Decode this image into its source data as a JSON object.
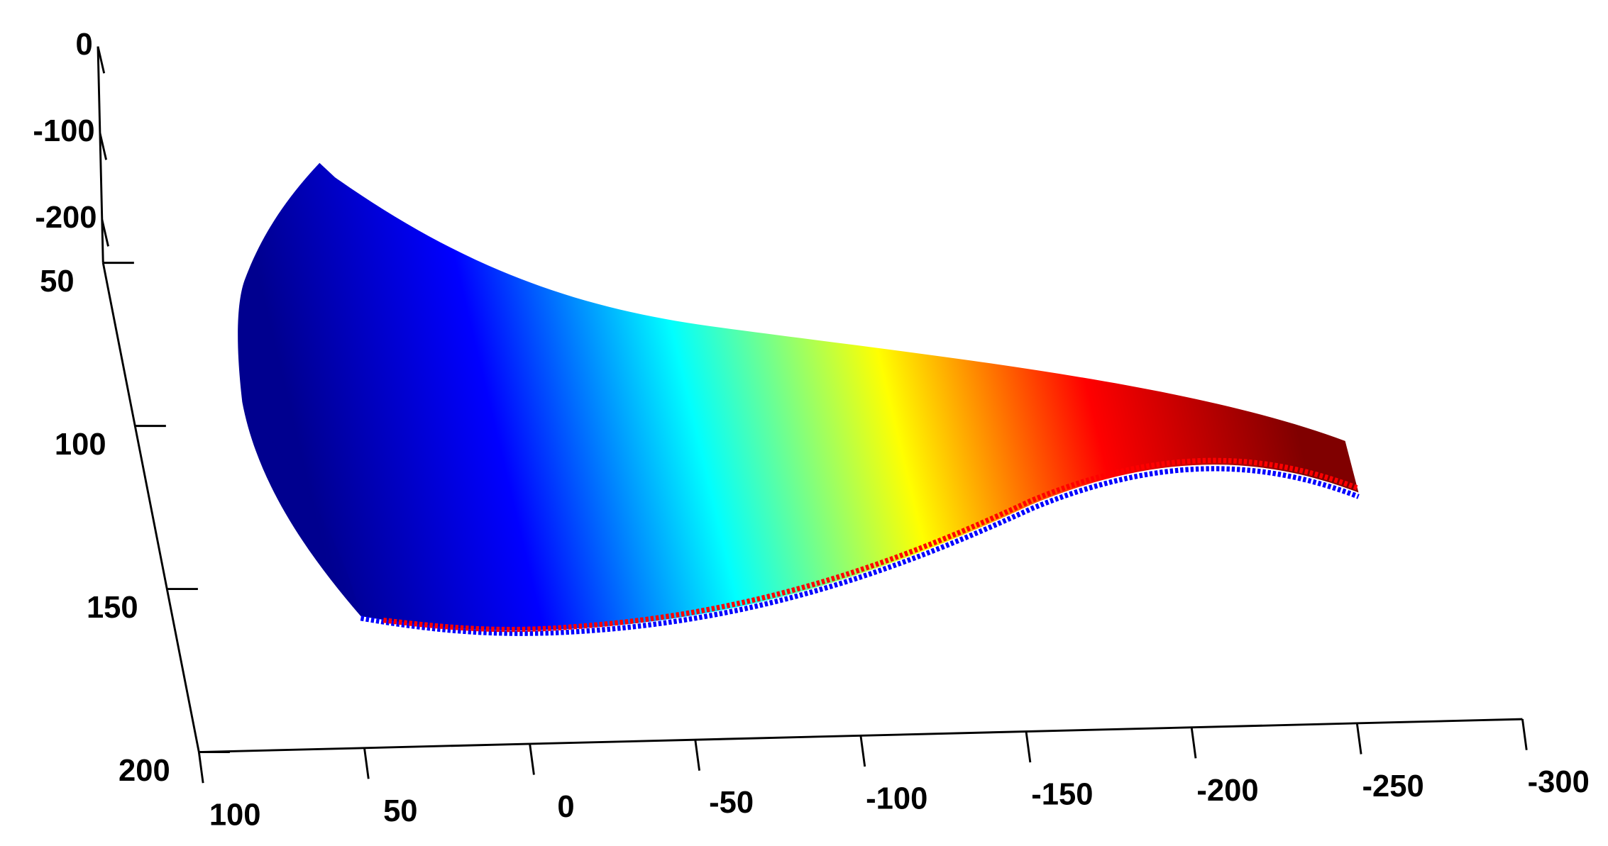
{
  "chart_data": {
    "type": "surface3d",
    "xlim": [
      100,
      -300
    ],
    "xticks": [
      100,
      50,
      0,
      -50,
      -100,
      -150,
      -200,
      -250,
      -300
    ],
    "ylim": [
      50,
      200
    ],
    "yticks": [
      50,
      100,
      150,
      200
    ],
    "zlim": [
      -250,
      0
    ],
    "zticks": [
      0,
      -100,
      -200
    ],
    "colormap": [
      "#00008f",
      "#0000ff",
      "#00ffff",
      "#ffff00",
      "#ff0000",
      "#800000"
    ]
  }
}
